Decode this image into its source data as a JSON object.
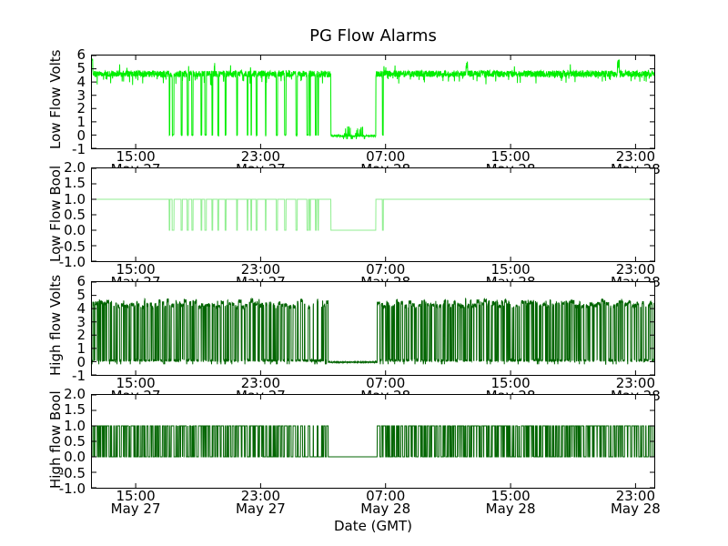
{
  "chart_data": {
    "type": "line",
    "title": "PG Flow Alarms",
    "xlabel": "Date (GMT)",
    "x_unit": "hours since 00:00 May 27 GMT",
    "x_range": [
      12.2,
      48.2
    ],
    "grid": false,
    "legend": null,
    "x_ticks": [
      {
        "time": "15:00",
        "date": "May 27",
        "hour": 15
      },
      {
        "time": "23:00",
        "date": "May 27",
        "hour": 23
      },
      {
        "time": "07:00",
        "date": "May 28",
        "hour": 31
      },
      {
        "time": "15:00",
        "date": "May 28",
        "hour": 39
      },
      {
        "time": "23:00",
        "date": "May 28",
        "hour": 47
      }
    ],
    "panels": [
      {
        "id": "low-flow-volts",
        "ylabel": "Low Flow Volts",
        "ylim": [
          -1,
          6
        ],
        "ytick_labels": [
          "6",
          "5",
          "4",
          "3",
          "2",
          "1",
          "0",
          "-1"
        ],
        "color": "#00ee00",
        "color_name": "bright green",
        "kind": "analog-low",
        "baseline_volts": 4.65,
        "noise_volts": 0.5,
        "startup_spike_volts": 5.85,
        "outage_level_volts": -0.05
      },
      {
        "id": "low-flow-bool",
        "ylabel": "Low Flow Bool",
        "ylim": [
          -1,
          2
        ],
        "ytick_labels": [
          "2.0",
          "1.5",
          "1.0",
          "0.5",
          "0.0",
          "-0.5",
          "-1.0"
        ],
        "color": "#90ee90",
        "color_name": "light green",
        "kind": "bool-low",
        "high": 1,
        "low": 0
      },
      {
        "id": "high-flow-volts",
        "ylabel": "High flow Volts",
        "ylim": [
          -1,
          6
        ],
        "ytick_labels": [
          "6",
          "5",
          "4",
          "3",
          "2",
          "1",
          "0",
          "-1"
        ],
        "color": "#006400",
        "color_name": "dark green",
        "kind": "analog-high",
        "on_volts": 4.4,
        "off_volts": 0.1,
        "quiet_level_volts": -0.04
      },
      {
        "id": "high-flow-bool",
        "ylabel": "High flow Bool",
        "ylim": [
          -1,
          2
        ],
        "ytick_labels": [
          "2.0",
          "1.5",
          "1.0",
          "0.5",
          "0.0",
          "-0.5",
          "-1.0"
        ],
        "color": "#006400",
        "color_name": "dark green",
        "kind": "bool-high",
        "high": 1,
        "low": 0
      }
    ],
    "events": {
      "low_flow_dropouts": {
        "window_hours": [
          17.15,
          27.2
        ],
        "approx_count": 23,
        "dropout_volts": 0,
        "dropout_bool": 0,
        "desc": "repeated brief drops from ~4.65V/1 to 0"
      },
      "outage": {
        "from_hour": 27.5,
        "to_hour": 30.38,
        "desc": "all four signals flat near zero (03:30-06:20 May 28)"
      },
      "high_flow_quiet_window_hours": [
        27.25,
        30.45
      ],
      "sparse_high_flow_from_hour": 25.3,
      "recovery_dip_hours": [
        30.8,
        30.86
      ],
      "late_noise_spikes_hours": [
        36.2,
        45.9
      ],
      "high_flow_telegraph": {
        "desc": "dense random on/off switching across full span",
        "on_volts": 4.4,
        "off_volts": 0.1,
        "bool_on": 1,
        "bool_off": 0
      }
    }
  }
}
